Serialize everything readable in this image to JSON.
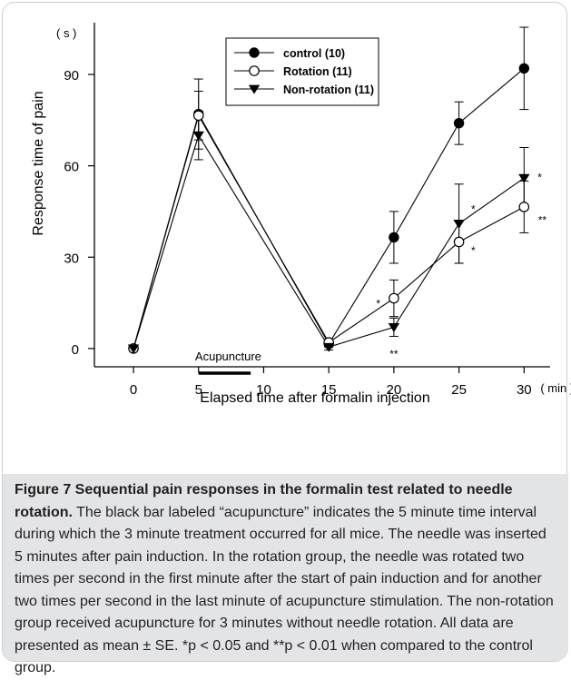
{
  "chart_data": {
    "type": "line",
    "x": [
      0,
      5,
      15,
      20,
      25,
      30
    ],
    "xlabel": "Elapsed time after formalin injection",
    "ylabel": "Response time of pain",
    "x_unit": "( min )",
    "y_unit": "( s )",
    "xticks": [
      0,
      5,
      10,
      15,
      20,
      25,
      30
    ],
    "yticks": [
      0,
      30,
      60,
      90
    ],
    "xlim": [
      -3,
      32
    ],
    "ylim": [
      -6,
      107
    ],
    "grid": false,
    "legend_position": "top-center",
    "series": [
      {
        "name": "control (10)",
        "marker": "filled-circle",
        "values": [
          0,
          77,
          1.5,
          36.5,
          74,
          92
        ],
        "errors": [
          0,
          11.5,
          1,
          8.5,
          7,
          13.5
        ]
      },
      {
        "name": "Rotation (11)",
        "marker": "open-circle",
        "values": [
          0,
          76.5,
          2,
          16.5,
          35,
          46.5
        ],
        "errors": [
          0,
          8,
          1,
          6,
          7,
          8.5
        ]
      },
      {
        "name": "Non-rotation (11)",
        "marker": "filled-triangle-down",
        "values": [
          0,
          70,
          0.5,
          7,
          41,
          56
        ],
        "errors": [
          0,
          8,
          1,
          3,
          13,
          10
        ]
      }
    ],
    "annotations": [
      {
        "text": "*",
        "x": 18.8,
        "y": 15
      },
      {
        "text": "**",
        "x": 20,
        "y": -1.5
      },
      {
        "text": "*",
        "x": 26.1,
        "y": 46
      },
      {
        "text": "*",
        "x": 26.1,
        "y": 32.5
      },
      {
        "text": "*",
        "x": 31.2,
        "y": 56.5
      },
      {
        "text": "**",
        "x": 31.4,
        "y": 42.5
      }
    ],
    "treatment_bar": {
      "label": "Acupuncture",
      "x_start": 5,
      "x_end": 9
    }
  },
  "caption": {
    "title": "Figure 7 Sequential pain responses in the formalin test related to needle rotation.",
    "body": " The black bar labeled “acupuncture” indicates the 5 minute time interval during which the 3 minute treatment occurred for all mice. The needle was inserted 5 minutes after pain induction. In the rotation group, the needle was rotated two times per second in the first minute after the start of pain induction and for another two times per second in the last minute of acupuncture stimulation. The non-rotation group received acupuncture for 3 minutes without needle rotation. All data are presented as mean ± SE. *p < 0.05 and **p < 0.01 when compared to the control group."
  }
}
